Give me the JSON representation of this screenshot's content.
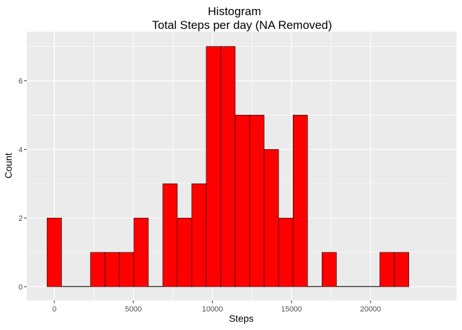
{
  "chart_data": {
    "type": "bar",
    "title": "Histogram",
    "subtitle": "Total Steps per day (NA Removed)",
    "xlabel": "Steps",
    "ylabel": "Count",
    "binwidth": 915,
    "xlim": [
      -1000,
      23000
    ],
    "ylim": [
      0,
      7
    ],
    "xticks": [
      0,
      5000,
      10000,
      15000,
      20000
    ],
    "yticks": [
      0,
      2,
      4,
      6
    ],
    "bins": [
      {
        "center": 0,
        "count": 2
      },
      {
        "center": 915,
        "count": 0
      },
      {
        "center": 1830,
        "count": 0
      },
      {
        "center": 2745,
        "count": 1
      },
      {
        "center": 3660,
        "count": 1
      },
      {
        "center": 4575,
        "count": 1
      },
      {
        "center": 5490,
        "count": 2
      },
      {
        "center": 6405,
        "count": 0
      },
      {
        "center": 7320,
        "count": 3
      },
      {
        "center": 8235,
        "count": 2
      },
      {
        "center": 9150,
        "count": 3
      },
      {
        "center": 10065,
        "count": 7
      },
      {
        "center": 10980,
        "count": 7
      },
      {
        "center": 11895,
        "count": 5
      },
      {
        "center": 12810,
        "count": 5
      },
      {
        "center": 13725,
        "count": 4
      },
      {
        "center": 14640,
        "count": 2
      },
      {
        "center": 15555,
        "count": 5
      },
      {
        "center": 16470,
        "count": 0
      },
      {
        "center": 17385,
        "count": 1
      },
      {
        "center": 18300,
        "count": 0
      },
      {
        "center": 19215,
        "count": 0
      },
      {
        "center": 20130,
        "count": 0
      },
      {
        "center": 21045,
        "count": 1
      },
      {
        "center": 21960,
        "count": 1
      }
    ],
    "colors": {
      "bar_fill": "#FF0000",
      "bar_stroke": "#000000",
      "panel": "#EBEBEB",
      "grid": "#FFFFFF"
    },
    "grid": true
  }
}
